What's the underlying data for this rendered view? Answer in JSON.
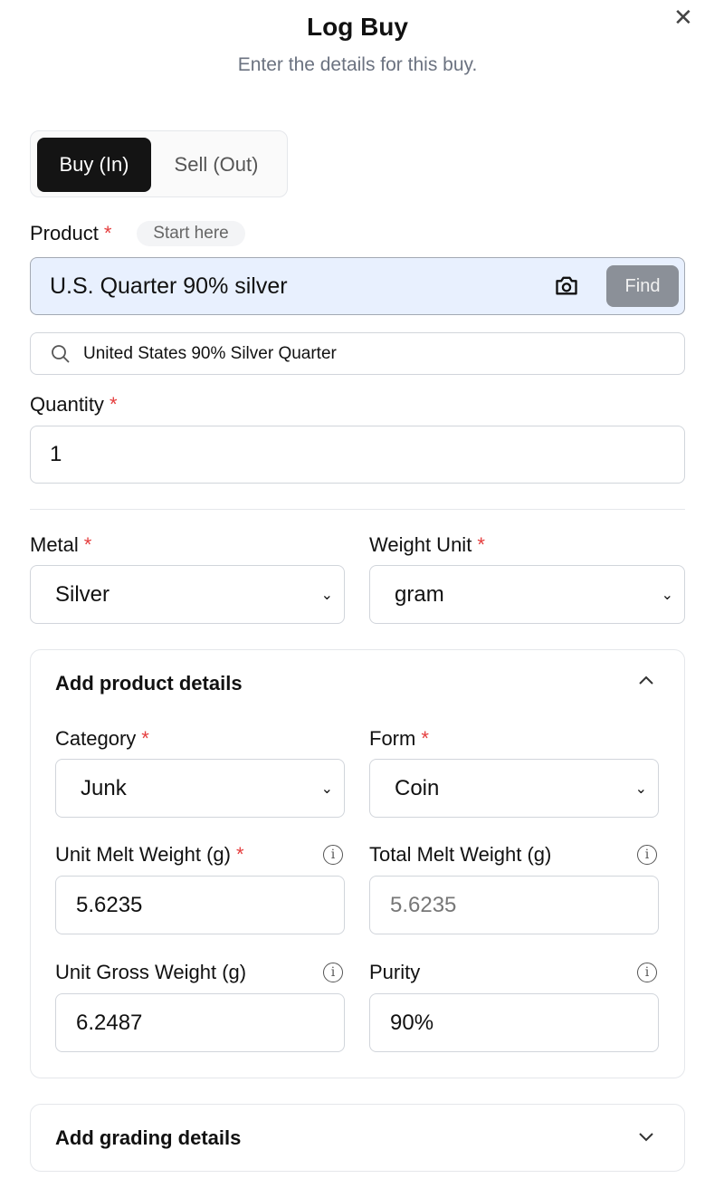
{
  "dialog": {
    "title": "Log Buy",
    "subtitle": "Enter the details for this buy.",
    "close_icon": "close-icon"
  },
  "toggle": {
    "buy": "Buy (In)",
    "sell": "Sell (Out)",
    "selected": "Buy (In)"
  },
  "product": {
    "label": "Product",
    "required": "*",
    "badge": "Start here",
    "value": "U.S. Quarter 90% silver",
    "find": "Find",
    "suggestion": "United States 90% Silver Quarter"
  },
  "quantity": {
    "label": "Quantity",
    "required": "*",
    "value": "1"
  },
  "metal": {
    "label": "Metal",
    "required": "*",
    "value": "Silver"
  },
  "weight_unit": {
    "label": "Weight Unit",
    "required": "*",
    "value": "gram"
  },
  "product_details": {
    "title": "Add product details",
    "expanded": true,
    "category": {
      "label": "Category",
      "required": "*",
      "value": "Junk"
    },
    "form": {
      "label": "Form",
      "required": "*",
      "value": "Coin"
    },
    "unit_melt": {
      "label": "Unit Melt Weight (g)",
      "required": "*",
      "value": "5.6235"
    },
    "total_melt": {
      "label": "Total Melt Weight (g)",
      "value": "5.6235"
    },
    "unit_gross": {
      "label": "Unit Gross Weight (g)",
      "value": "6.2487"
    },
    "purity": {
      "label": "Purity",
      "value": "90%"
    }
  },
  "grading_details": {
    "title": "Add grading details",
    "expanded": false
  },
  "colors": {
    "primary": "#141414",
    "required": "#e53e3e",
    "product_input_bg": "#e8f0fe",
    "find_button": "#8b9098"
  }
}
